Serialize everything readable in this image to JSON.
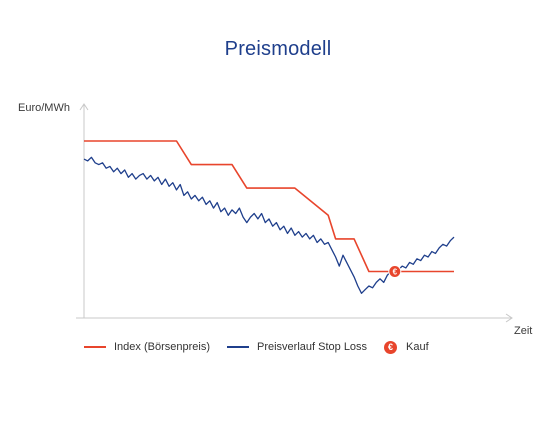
{
  "chart_data": {
    "type": "line",
    "title": "Preismodell",
    "xlabel": "Zeit",
    "ylabel": "Euro/MWh",
    "grid": false,
    "legend_position": "bottom",
    "colors": {
      "index": "#e8452c",
      "stop_loss": "#1f3f8c",
      "kauf": "#e8452c",
      "axis": "#c8c8c8"
    },
    "series": [
      {
        "name": "Index (Börsenpreis)",
        "color": "#e8452c",
        "points": [
          [
            0,
            100
          ],
          [
            25,
            100
          ],
          [
            29,
            87
          ],
          [
            40,
            87
          ],
          [
            44,
            74
          ],
          [
            57,
            74
          ],
          [
            66,
            59
          ],
          [
            68,
            46
          ],
          [
            73,
            46
          ],
          [
            77,
            28
          ],
          [
            80,
            28
          ],
          [
            100,
            28
          ]
        ]
      },
      {
        "name": "Preisverlauf Stop Loss",
        "color": "#1f3f8c",
        "points": [
          [
            0,
            90
          ],
          [
            1,
            89
          ],
          [
            2,
            91
          ],
          [
            3,
            88
          ],
          [
            4,
            87
          ],
          [
            5,
            88
          ],
          [
            6,
            85
          ],
          [
            7,
            86
          ],
          [
            8,
            83
          ],
          [
            9,
            85
          ],
          [
            10,
            82
          ],
          [
            11,
            84
          ],
          [
            12,
            80
          ],
          [
            13,
            82
          ],
          [
            14,
            79
          ],
          [
            15,
            81
          ],
          [
            16,
            82
          ],
          [
            17,
            79
          ],
          [
            18,
            81
          ],
          [
            19,
            78
          ],
          [
            20,
            80
          ],
          [
            21,
            76
          ],
          [
            22,
            79
          ],
          [
            23,
            75
          ],
          [
            24,
            77
          ],
          [
            25,
            73
          ],
          [
            26,
            76
          ],
          [
            27,
            70
          ],
          [
            28,
            72
          ],
          [
            29,
            68
          ],
          [
            30,
            70
          ],
          [
            31,
            67
          ],
          [
            32,
            69
          ],
          [
            33,
            65
          ],
          [
            34,
            67
          ],
          [
            35,
            63
          ],
          [
            36,
            66
          ],
          [
            37,
            61
          ],
          [
            38,
            63
          ],
          [
            39,
            59
          ],
          [
            40,
            62
          ],
          [
            41,
            60
          ],
          [
            42,
            63
          ],
          [
            43,
            58
          ],
          [
            44,
            55
          ],
          [
            45,
            58
          ],
          [
            46,
            60
          ],
          [
            47,
            57
          ],
          [
            48,
            60
          ],
          [
            49,
            55
          ],
          [
            50,
            57
          ],
          [
            51,
            53
          ],
          [
            52,
            55
          ],
          [
            53,
            51
          ],
          [
            54,
            53
          ],
          [
            55,
            49
          ],
          [
            56,
            52
          ],
          [
            57,
            48
          ],
          [
            58,
            50
          ],
          [
            59,
            47
          ],
          [
            60,
            49
          ],
          [
            61,
            46
          ],
          [
            62,
            48
          ],
          [
            63,
            44
          ],
          [
            64,
            46
          ],
          [
            65,
            43
          ],
          [
            66,
            44
          ],
          [
            67,
            40
          ],
          [
            68,
            36
          ],
          [
            69,
            31
          ],
          [
            70,
            37
          ],
          [
            71,
            33
          ],
          [
            72,
            29
          ],
          [
            73,
            25
          ],
          [
            74,
            20
          ],
          [
            75,
            16
          ],
          [
            76,
            18
          ],
          [
            77,
            20
          ],
          [
            78,
            19
          ],
          [
            79,
            22
          ],
          [
            80,
            24
          ],
          [
            81,
            22
          ],
          [
            82,
            26
          ],
          [
            83,
            28
          ],
          [
            84,
            27
          ],
          [
            85,
            29
          ],
          [
            86,
            31
          ],
          [
            87,
            30
          ],
          [
            88,
            33
          ],
          [
            89,
            32
          ],
          [
            90,
            35
          ],
          [
            91,
            34
          ],
          [
            92,
            37
          ],
          [
            93,
            36
          ],
          [
            94,
            39
          ],
          [
            95,
            38
          ],
          [
            96,
            41
          ],
          [
            97,
            43
          ],
          [
            98,
            42
          ],
          [
            99,
            45
          ],
          [
            100,
            47
          ]
        ]
      }
    ],
    "markers": [
      {
        "name": "Kauf",
        "symbol": "€",
        "x": 84,
        "y": 28
      }
    ]
  },
  "legend": {
    "index_label": "Index (Börsenpreis)",
    "stop_loss_label": "Preisverlauf Stop Loss",
    "kauf_label": "Kauf",
    "kauf_symbol": "€"
  }
}
